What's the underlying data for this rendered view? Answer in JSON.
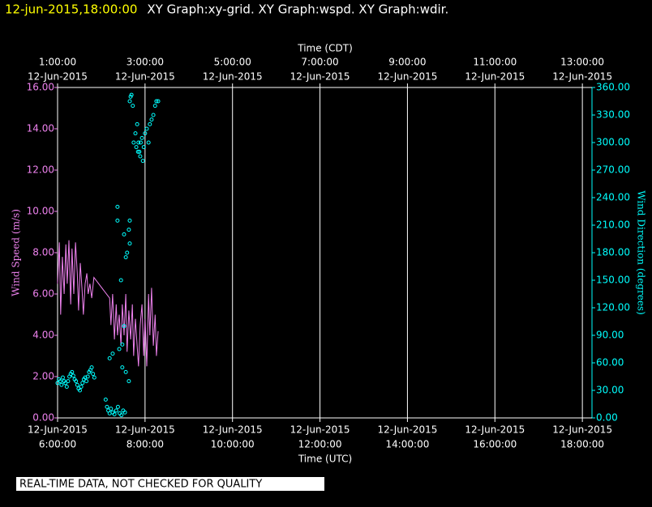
{
  "chart_data": {
    "type": "line",
    "title_time": "12-jun-2015,18:00:00",
    "title": "XY Graph:xy-grid.  XY Graph:wspd.  XY Graph:wdir.",
    "xlabel": "Time (UTC)",
    "x2label": "Time (CDT)",
    "ylabel": "Wind Speed (m/s)",
    "y2label": "Wind Direction (degrees)",
    "footer": "REAL-TIME DATA, NOT CHECKED FOR QUALITY",
    "xlim": [
      6,
      18.22
    ],
    "xticks": [
      {
        "value": 6,
        "label": "6:00:00",
        "date": "12-Jun-2015"
      },
      {
        "value": 8,
        "label": "8:00:00",
        "date": "12-Jun-2015"
      },
      {
        "value": 10,
        "label": "10:00:00",
        "date": "12-Jun-2015"
      },
      {
        "value": 12,
        "label": "12:00:00",
        "date": "12-Jun-2015"
      },
      {
        "value": 14,
        "label": "14:00:00",
        "date": "12-Jun-2015"
      },
      {
        "value": 16,
        "label": "16:00:00",
        "date": "12-Jun-2015"
      },
      {
        "value": 18,
        "label": "18:00:00",
        "date": "12-Jun-2015"
      }
    ],
    "x2ticks": [
      {
        "value": 6,
        "label": "1:00:00",
        "date": "12-Jun-2015"
      },
      {
        "value": 8,
        "label": "3:00:00",
        "date": "12-Jun-2015"
      },
      {
        "value": 10,
        "label": "5:00:00",
        "date": "12-Jun-2015"
      },
      {
        "value": 12,
        "label": "7:00:00",
        "date": "12-Jun-2015"
      },
      {
        "value": 14,
        "label": "9:00:00",
        "date": "12-Jun-2015"
      },
      {
        "value": 16,
        "label": "11:00:00",
        "date": "12-Jun-2015"
      },
      {
        "value": 18,
        "label": "13:00:00",
        "date": "12-Jun-2015"
      }
    ],
    "ylim": [
      0,
      16
    ],
    "yticks": [
      {
        "value": 0,
        "label": "0.00"
      },
      {
        "value": 2,
        "label": "2.00"
      },
      {
        "value": 4,
        "label": "4.00"
      },
      {
        "value": 6,
        "label": "6.00"
      },
      {
        "value": 8,
        "label": "8.00"
      },
      {
        "value": 10,
        "label": "10.00"
      },
      {
        "value": 12,
        "label": "12.00"
      },
      {
        "value": 14,
        "label": "14.00"
      },
      {
        "value": 16,
        "label": "16.00"
      }
    ],
    "y2lim": [
      0,
      360
    ],
    "y2ticks": [
      {
        "value": 0,
        "label": "0.00"
      },
      {
        "value": 30,
        "label": "30.00"
      },
      {
        "value": 60,
        "label": "60.00"
      },
      {
        "value": 90,
        "label": "90.00"
      },
      {
        "value": 120,
        "label": "120.00"
      },
      {
        "value": 150,
        "label": "150.00"
      },
      {
        "value": 180,
        "label": "180.00"
      },
      {
        "value": 210,
        "label": "210.00"
      },
      {
        "value": 240,
        "label": "240.00"
      },
      {
        "value": 270,
        "label": "270.00"
      },
      {
        "value": 300,
        "label": "300.00"
      },
      {
        "value": 330,
        "label": "330.00"
      },
      {
        "value": 360,
        "label": "360.00"
      }
    ],
    "grid": "x",
    "series": [
      {
        "type": "line",
        "color": "#ee82ee",
        "x": [
          6.0,
          6.04,
          6.07,
          6.11,
          6.15,
          6.19,
          6.22,
          6.26,
          6.3,
          6.33,
          6.37,
          6.41,
          6.45,
          6.48,
          6.52,
          6.56,
          6.59,
          6.63,
          6.67,
          6.7,
          6.74,
          6.78,
          6.83,
          7.19,
          7.22,
          7.26,
          7.3,
          7.34,
          7.37,
          7.41,
          7.45,
          7.48,
          7.52,
          7.56,
          7.59,
          7.63,
          7.67,
          7.71,
          7.74,
          7.78,
          7.82,
          7.85,
          7.89,
          7.93,
          7.97,
          8.0,
          8.04,
          8.08,
          8.11,
          8.15,
          8.19,
          8.23,
          8.26,
          8.3
        ],
        "values": [
          6.5,
          8.5,
          5.0,
          7.8,
          6.0,
          8.4,
          6.5,
          8.6,
          5.5,
          8.2,
          6.0,
          8.5,
          7.0,
          5.2,
          7.5,
          6.2,
          5.0,
          6.5,
          7.0,
          6.0,
          6.5,
          5.8,
          6.8,
          5.8,
          4.5,
          6.0,
          3.8,
          5.5,
          4.0,
          5.0,
          3.5,
          5.5,
          4.0,
          6.0,
          3.2,
          5.2,
          3.8,
          5.5,
          3.0,
          4.8,
          3.5,
          2.5,
          4.5,
          5.5,
          3.0,
          4.8,
          2.5,
          6.0,
          4.0,
          6.3,
          3.5,
          5.0,
          3.0,
          4.2
        ]
      },
      {
        "type": "scatter",
        "axis": "y2",
        "color": "#00ffff",
        "x": [
          6.0,
          6.03,
          6.06,
          6.09,
          6.12,
          6.15,
          6.18,
          6.21,
          6.24,
          6.27,
          6.3,
          6.33,
          6.36,
          6.39,
          6.42,
          6.45,
          6.48,
          6.51,
          6.54,
          6.57,
          6.6,
          6.63,
          6.66,
          6.69,
          6.72,
          6.75,
          6.78,
          6.81,
          6.84,
          7.1,
          7.13,
          7.16,
          7.19,
          7.22,
          7.26,
          7.3,
          7.34,
          7.38,
          7.42,
          7.46,
          7.5,
          7.54,
          7.19,
          7.26,
          7.37,
          7.37,
          7.41,
          7.45,
          7.48,
          7.52,
          7.56,
          7.59,
          7.63,
          7.65,
          7.65,
          7.63,
          7.56,
          7.48,
          7.52,
          7.65,
          7.67,
          7.69,
          7.72,
          7.74,
          7.78,
          7.82,
          7.85,
          7.87,
          7.89,
          7.93,
          7.97,
          7.8,
          7.84,
          8.0,
          8.04,
          8.08,
          8.11,
          8.15,
          8.19,
          8.23,
          8.26,
          8.3,
          7.9,
          7.95
        ],
        "values": [
          38,
          42,
          40,
          36,
          44,
          40,
          38,
          34,
          40,
          45,
          48,
          50,
          46,
          42,
          40,
          36,
          32,
          30,
          34,
          38,
          42,
          44,
          40,
          45,
          50,
          52,
          55,
          48,
          44,
          20,
          12,
          8,
          5,
          10,
          6,
          4,
          8,
          12,
          5,
          3,
          8,
          6,
          65,
          70,
          215,
          230,
          75,
          150,
          80,
          100,
          175,
          180,
          205,
          190,
          215,
          40,
          50,
          55,
          200,
          345,
          350,
          352,
          340,
          300,
          310,
          320,
          300,
          290,
          285,
          305,
          295,
          295,
          290,
          310,
          315,
          300,
          320,
          325,
          330,
          340,
          345,
          345,
          300,
          280
        ]
      }
    ]
  }
}
